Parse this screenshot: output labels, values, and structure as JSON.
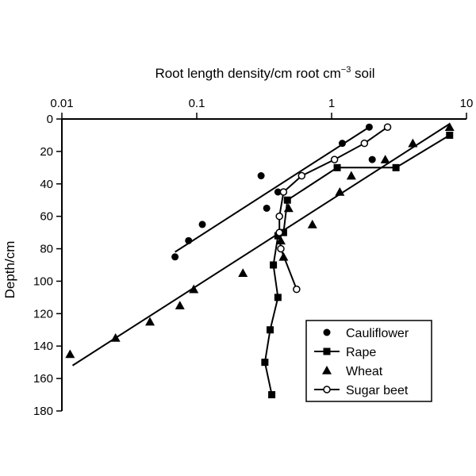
{
  "chart_data": {
    "type": "scatter",
    "title": "",
    "xlabel": "Root length density/cm root cm",
    "xlabel_sup": "−3",
    "xlabel_tail": " soil",
    "ylabel": "Depth/cm",
    "x_scale": "log",
    "xlim": [
      0.01,
      10
    ],
    "ylim": [
      0,
      180
    ],
    "y_inverted": true,
    "x_axis_position": "top",
    "grid": false,
    "legend_position": "bottom-right",
    "x_ticks": [
      {
        "value": 0.01,
        "label": "0.01"
      },
      {
        "value": 0.1,
        "label": "0.1"
      },
      {
        "value": 1,
        "label": "1"
      },
      {
        "value": 10,
        "label": "10"
      }
    ],
    "y_ticks": [
      {
        "value": 0,
        "label": "0"
      },
      {
        "value": 20,
        "label": "20"
      },
      {
        "value": 40,
        "label": "40"
      },
      {
        "value": 60,
        "label": "60"
      },
      {
        "value": 80,
        "label": "80"
      },
      {
        "value": 100,
        "label": "100"
      },
      {
        "value": 120,
        "label": "120"
      },
      {
        "value": 140,
        "label": "140"
      },
      {
        "value": 160,
        "label": "160"
      },
      {
        "value": 180,
        "label": "180"
      }
    ],
    "series": [
      {
        "name": "Cauliflower",
        "marker": "circle-filled",
        "points": [
          [
            1.9,
            5
          ],
          [
            1.2,
            15
          ],
          [
            2.0,
            25
          ],
          [
            0.3,
            35
          ],
          [
            0.4,
            45
          ],
          [
            0.33,
            55
          ],
          [
            0.11,
            65
          ],
          [
            0.087,
            75
          ],
          [
            0.069,
            85
          ]
        ],
        "fit_line": [
          [
            1.9,
            5
          ],
          [
            0.069,
            82
          ]
        ]
      },
      {
        "name": "Rape",
        "marker": "square-filled",
        "connect": true,
        "points": [
          [
            7.5,
            10
          ],
          [
            3.0,
            30
          ],
          [
            1.1,
            30
          ],
          [
            0.47,
            50
          ],
          [
            0.44,
            70
          ],
          [
            0.4,
            72
          ],
          [
            0.37,
            90
          ],
          [
            0.4,
            110
          ],
          [
            0.35,
            130
          ],
          [
            0.32,
            150
          ],
          [
            0.36,
            170
          ]
        ]
      },
      {
        "name": "Wheat",
        "marker": "triangle-filled",
        "points": [
          [
            7.5,
            5
          ],
          [
            4.0,
            15
          ],
          [
            2.5,
            25
          ],
          [
            1.4,
            35
          ],
          [
            1.15,
            45
          ],
          [
            0.48,
            55
          ],
          [
            0.72,
            65
          ],
          [
            0.42,
            75
          ],
          [
            0.44,
            85
          ],
          [
            0.22,
            95
          ],
          [
            0.095,
            105
          ],
          [
            0.075,
            115
          ],
          [
            0.045,
            125
          ],
          [
            0.025,
            135
          ],
          [
            0.0115,
            145
          ]
        ],
        "fit_line": [
          [
            7.5,
            3
          ],
          [
            0.012,
            152
          ]
        ]
      },
      {
        "name": "Sugar beet",
        "marker": "circle-open",
        "connect": true,
        "points": [
          [
            2.6,
            5
          ],
          [
            1.75,
            15
          ],
          [
            1.05,
            25
          ],
          [
            0.6,
            35
          ],
          [
            0.44,
            45
          ],
          [
            0.41,
            60
          ],
          [
            0.41,
            70
          ],
          [
            0.42,
            80
          ],
          [
            0.55,
            105
          ]
        ]
      }
    ]
  }
}
